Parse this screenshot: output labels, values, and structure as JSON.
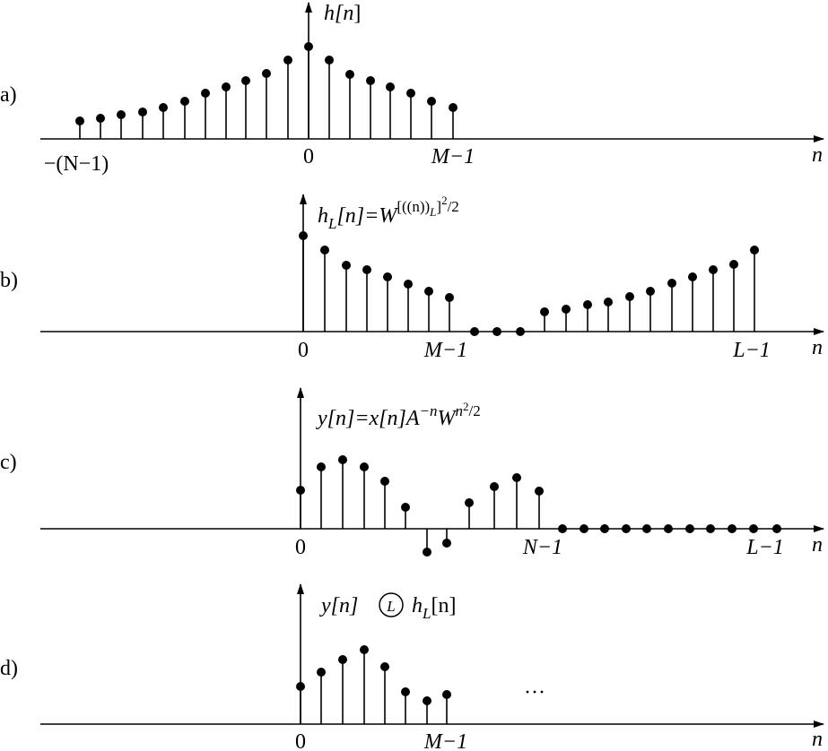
{
  "panels": [
    {
      "label": "a)",
      "title": [
        "h[",
        "n",
        "]"
      ],
      "ticks": [
        "−(N−1)",
        "0",
        "M−1"
      ],
      "axis_label": "n"
    },
    {
      "label": "b)",
      "title": [
        "h",
        "L",
        "[n]=W",
        "[((n))",
        "L",
        "]",
        "2",
        "/2"
      ],
      "ticks": [
        "0",
        "M−1",
        "L−1"
      ],
      "axis_label": "n"
    },
    {
      "label": "c)",
      "title": [
        "y[n]=x[n]A",
        "−n",
        "W",
        "n",
        "2",
        "/2"
      ],
      "ticks": [
        "0",
        "N−1",
        "L−1"
      ],
      "axis_label": "n"
    },
    {
      "label": "d)",
      "title": [
        "y[n]",
        "L",
        "h",
        "L",
        "[n]"
      ],
      "ticks": [
        "0",
        "M−1"
      ],
      "axis_label": "n",
      "note": "···"
    }
  ]
}
